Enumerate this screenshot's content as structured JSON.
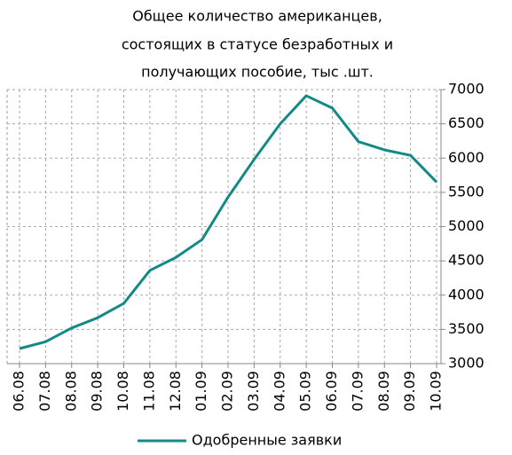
{
  "chart_data": {
    "type": "line",
    "title": [
      "Общее количество американцев,",
      "состоящих в статусе безработных и",
      "получающих пособие, тыс .шт."
    ],
    "categories": [
      "06.08",
      "07.08",
      "08.08",
      "09.08",
      "10.08",
      "11.08",
      "12.08",
      "01.09",
      "02.09",
      "03.09",
      "04.09",
      "05.09",
      "06.09",
      "07.09",
      "08.09",
      "09.09",
      "10.09"
    ],
    "series": [
      {
        "name": "Одобренные заявки",
        "color": "#138a87",
        "values": [
          3220,
          3320,
          3520,
          3670,
          3880,
          4360,
          4550,
          4810,
          5430,
          5980,
          6500,
          6910,
          6730,
          6240,
          6120,
          6040,
          5650
        ]
      }
    ],
    "ylim": [
      3000,
      7000
    ],
    "yticks": [
      3000,
      3500,
      4000,
      4500,
      5000,
      5500,
      6000,
      6500,
      7000
    ],
    "grid": true,
    "y_axis_side": "right",
    "legend": "bottom"
  }
}
